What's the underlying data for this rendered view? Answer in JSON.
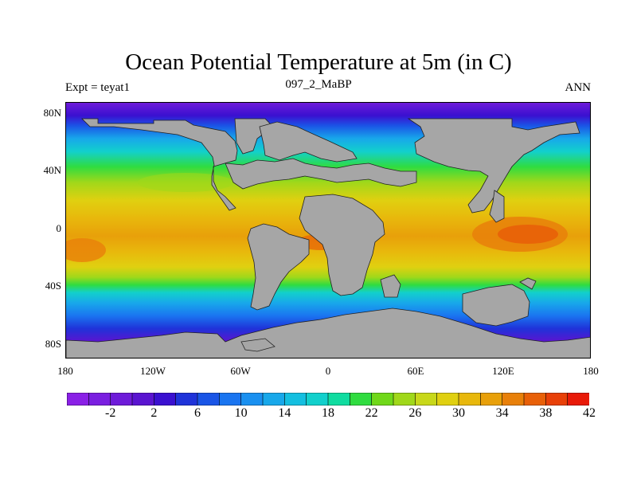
{
  "header": {
    "title": "Ocean Potential Temperature at 5m (in C)",
    "left_label": "Expt = teyat1",
    "center_label": "097_2_MaBP",
    "right_label": "ANN"
  },
  "map": {
    "lat_labels": [
      "80N",
      "40N",
      "0",
      "40S",
      "80S"
    ],
    "lon_labels": [
      "180",
      "120W",
      "60W",
      "0",
      "60E",
      "120E",
      "180"
    ],
    "land_color": "#a6a6a6"
  },
  "colorbar": {
    "colors": [
      "#8a20e6",
      "#7a1fe0",
      "#6e1bd9",
      "#5a14d0",
      "#3a10d0",
      "#1f33d9",
      "#1a55e6",
      "#1a75f0",
      "#1a90f0",
      "#18a8ea",
      "#14bfe0",
      "#12d0cc",
      "#10dca0",
      "#30dc40",
      "#70d81a",
      "#a0d81a",
      "#c8d81a",
      "#e0d010",
      "#e8b80c",
      "#e8a00a",
      "#e8800a",
      "#e86008",
      "#e84008",
      "#e81a08"
    ],
    "labels": [
      "-2",
      "2",
      "6",
      "10",
      "14",
      "18",
      "22",
      "26",
      "30",
      "34",
      "38",
      "42"
    ]
  }
}
